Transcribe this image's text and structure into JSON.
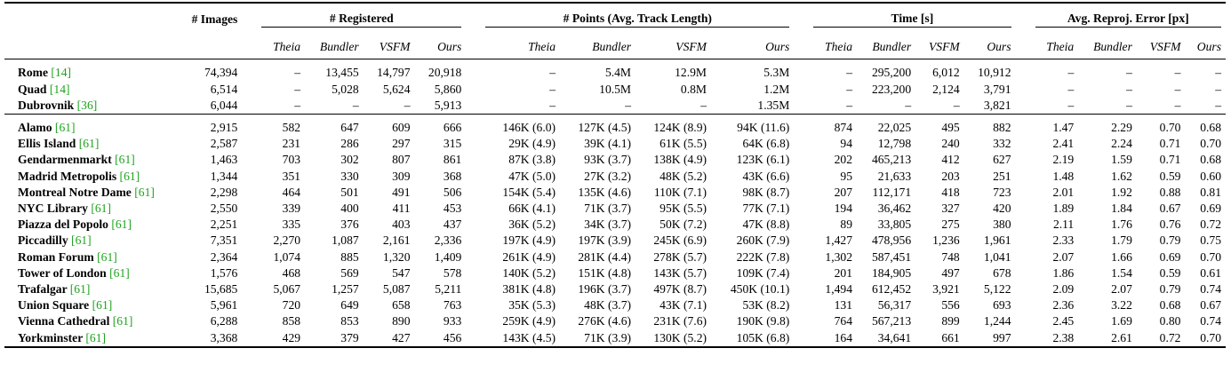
{
  "groups": [
    "# Images",
    "# Registered",
    "# Points (Avg. Track Length)",
    "Time [s]",
    "Avg. Reproj. Error [px]"
  ],
  "subheaders": [
    "Theia",
    "Bundler",
    "VSFM",
    "Ours"
  ],
  "sections": [
    [
      {
        "name": "Rome",
        "cite": "[14]",
        "images": "74,394",
        "reg": [
          "–",
          "13,455",
          "14,797",
          "20,918"
        ],
        "points": [
          "–",
          "5.4M",
          "12.9M",
          "5.3M"
        ],
        "time": [
          "–",
          "295,200",
          "6,012",
          "10,912"
        ],
        "err": [
          "–",
          "–",
          "–",
          "–"
        ]
      },
      {
        "name": "Quad",
        "cite": "[14]",
        "images": "6,514",
        "reg": [
          "–",
          "5,028",
          "5,624",
          "5,860"
        ],
        "points": [
          "–",
          "10.5M",
          "0.8M",
          "1.2M"
        ],
        "time": [
          "–",
          "223,200",
          "2,124",
          "3,791"
        ],
        "err": [
          "–",
          "–",
          "–",
          "–"
        ]
      },
      {
        "name": "Dubrovnik",
        "cite": "[36]",
        "images": "6,044",
        "reg": [
          "–",
          "–",
          "–",
          "5,913"
        ],
        "points": [
          "–",
          "–",
          "–",
          "1.35M"
        ],
        "time": [
          "–",
          "–",
          "–",
          "3,821"
        ],
        "err": [
          "–",
          "–",
          "–",
          "–"
        ]
      }
    ],
    [
      {
        "name": "Alamo",
        "cite": "[61]",
        "images": "2,915",
        "reg": [
          "582",
          "647",
          "609",
          "666"
        ],
        "points": [
          "146K (6.0)",
          "127K (4.5)",
          "124K (8.9)",
          "94K (11.6)"
        ],
        "time": [
          "874",
          "22,025",
          "495",
          "882"
        ],
        "err": [
          "1.47",
          "2.29",
          "0.70",
          "0.68"
        ]
      },
      {
        "name": "Ellis Island",
        "cite": "[61]",
        "images": "2,587",
        "reg": [
          "231",
          "286",
          "297",
          "315"
        ],
        "points": [
          "29K (4.9)",
          "39K (4.1)",
          "61K (5.5)",
          "64K (6.8)"
        ],
        "time": [
          "94",
          "12,798",
          "240",
          "332"
        ],
        "err": [
          "2.41",
          "2.24",
          "0.71",
          "0.70"
        ]
      },
      {
        "name": "Gendarmenmarkt",
        "cite": "[61]",
        "images": "1,463",
        "reg": [
          "703",
          "302",
          "807",
          "861"
        ],
        "points": [
          "87K (3.8)",
          "93K (3.7)",
          "138K (4.9)",
          "123K (6.1)"
        ],
        "time": [
          "202",
          "465,213",
          "412",
          "627"
        ],
        "err": [
          "2.19",
          "1.59",
          "0.71",
          "0.68"
        ]
      },
      {
        "name": "Madrid Metropolis",
        "cite": "[61]",
        "images": "1,344",
        "reg": [
          "351",
          "330",
          "309",
          "368"
        ],
        "points": [
          "47K (5.0)",
          "27K (3.2)",
          "48K (5.2)",
          "43K (6.6)"
        ],
        "time": [
          "95",
          "21,633",
          "203",
          "251"
        ],
        "err": [
          "1.48",
          "1.62",
          "0.59",
          "0.60"
        ]
      },
      {
        "name": "Montreal Notre Dame",
        "cite": "[61]",
        "images": "2,298",
        "reg": [
          "464",
          "501",
          "491",
          "506"
        ],
        "points": [
          "154K (5.4)",
          "135K (4.6)",
          "110K (7.1)",
          "98K (8.7)"
        ],
        "time": [
          "207",
          "112,171",
          "418",
          "723"
        ],
        "err": [
          "2.01",
          "1.92",
          "0.88",
          "0.81"
        ]
      },
      {
        "name": "NYC Library",
        "cite": "[61]",
        "images": "2,550",
        "reg": [
          "339",
          "400",
          "411",
          "453"
        ],
        "points": [
          "66K (4.1)",
          "71K (3.7)",
          "95K (5.5)",
          "77K (7.1)"
        ],
        "time": [
          "194",
          "36,462",
          "327",
          "420"
        ],
        "err": [
          "1.89",
          "1.84",
          "0.67",
          "0.69"
        ]
      },
      {
        "name": "Piazza del Popolo",
        "cite": "[61]",
        "images": "2,251",
        "reg": [
          "335",
          "376",
          "403",
          "437"
        ],
        "points": [
          "36K (5.2)",
          "34K (3.7)",
          "50K (7.2)",
          "47K (8.8)"
        ],
        "time": [
          "89",
          "33,805",
          "275",
          "380"
        ],
        "err": [
          "2.11",
          "1.76",
          "0.76",
          "0.72"
        ]
      },
      {
        "name": "Piccadilly",
        "cite": "[61]",
        "images": "7,351",
        "reg": [
          "2,270",
          "1,087",
          "2,161",
          "2,336"
        ],
        "points": [
          "197K (4.9)",
          "197K (3.9)",
          "245K (6.9)",
          "260K (7.9)"
        ],
        "time": [
          "1,427",
          "478,956",
          "1,236",
          "1,961"
        ],
        "err": [
          "2.33",
          "1.79",
          "0.79",
          "0.75"
        ]
      },
      {
        "name": "Roman Forum",
        "cite": "[61]",
        "images": "2,364",
        "reg": [
          "1,074",
          "885",
          "1,320",
          "1,409"
        ],
        "points": [
          "261K (4.9)",
          "281K (4.4)",
          "278K (5.7)",
          "222K (7.8)"
        ],
        "time": [
          "1,302",
          "587,451",
          "748",
          "1,041"
        ],
        "err": [
          "2.07",
          "1.66",
          "0.69",
          "0.70"
        ]
      },
      {
        "name": "Tower of London",
        "cite": "[61]",
        "images": "1,576",
        "reg": [
          "468",
          "569",
          "547",
          "578"
        ],
        "points": [
          "140K (5.2)",
          "151K (4.8)",
          "143K (5.7)",
          "109K (7.4)"
        ],
        "time": [
          "201",
          "184,905",
          "497",
          "678"
        ],
        "err": [
          "1.86",
          "1.54",
          "0.59",
          "0.61"
        ]
      },
      {
        "name": "Trafalgar",
        "cite": "[61]",
        "images": "15,685",
        "reg": [
          "5,067",
          "1,257",
          "5,087",
          "5,211"
        ],
        "points": [
          "381K (4.8)",
          "196K (3.7)",
          "497K (8.7)",
          "450K (10.1)"
        ],
        "time": [
          "1,494",
          "612,452",
          "3,921",
          "5,122"
        ],
        "err": [
          "2.09",
          "2.07",
          "0.79",
          "0.74"
        ]
      },
      {
        "name": "Union Square",
        "cite": "[61]",
        "images": "5,961",
        "reg": [
          "720",
          "649",
          "658",
          "763"
        ],
        "points": [
          "35K (5.3)",
          "48K (3.7)",
          "43K (7.1)",
          "53K (8.2)"
        ],
        "time": [
          "131",
          "56,317",
          "556",
          "693"
        ],
        "err": [
          "2.36",
          "3.22",
          "0.68",
          "0.67"
        ]
      },
      {
        "name": "Vienna Cathedral",
        "cite": "[61]",
        "images": "6,288",
        "reg": [
          "858",
          "853",
          "890",
          "933"
        ],
        "points": [
          "259K (4.9)",
          "276K (4.6)",
          "231K (7.6)",
          "190K (9.8)"
        ],
        "time": [
          "764",
          "567,213",
          "899",
          "1,244"
        ],
        "err": [
          "2.45",
          "1.69",
          "0.80",
          "0.74"
        ]
      },
      {
        "name": "Yorkminster",
        "cite": "[61]",
        "images": "3,368",
        "reg": [
          "429",
          "379",
          "427",
          "456"
        ],
        "points": [
          "143K (4.5)",
          "71K (3.9)",
          "130K (5.2)",
          "105K (6.8)"
        ],
        "time": [
          "164",
          "34,641",
          "661",
          "997"
        ],
        "err": [
          "2.38",
          "2.61",
          "0.72",
          "0.70"
        ]
      }
    ]
  ]
}
